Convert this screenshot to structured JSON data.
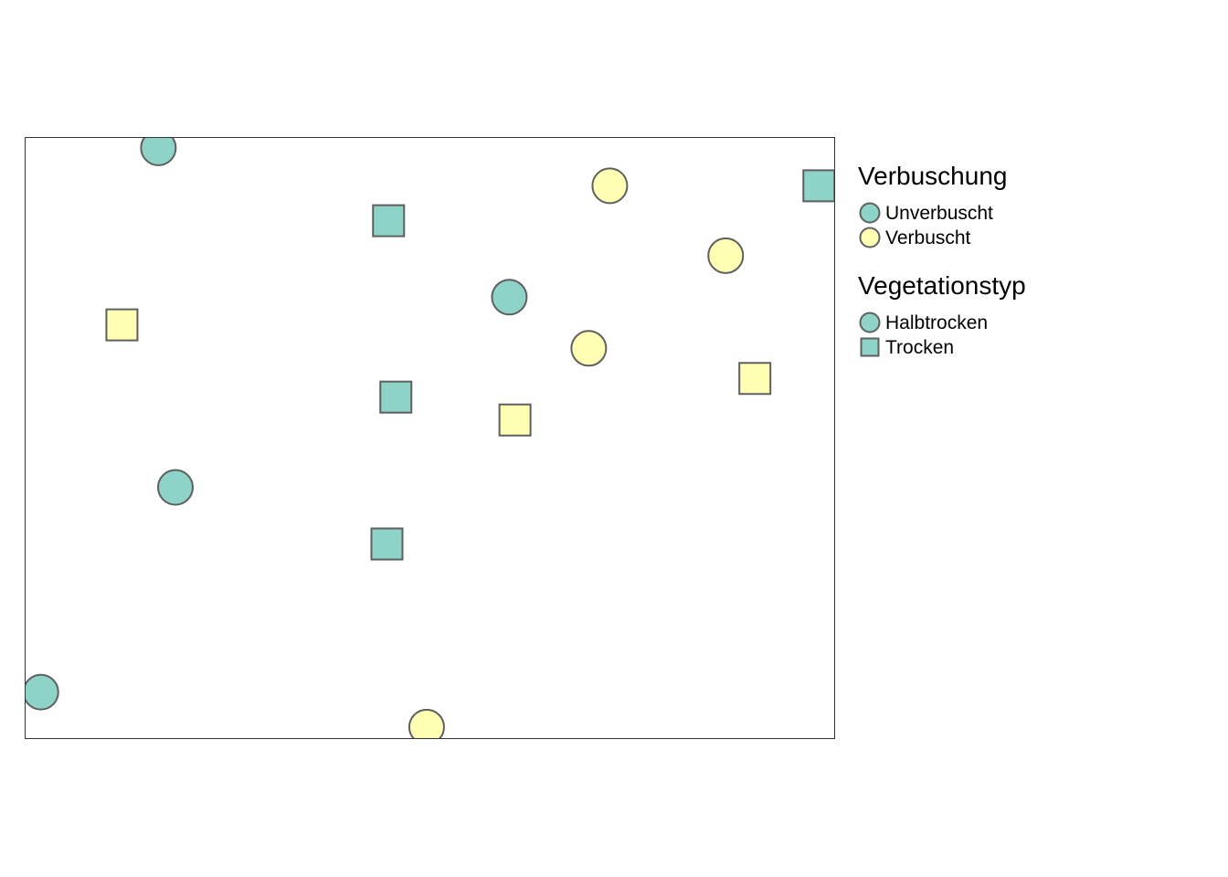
{
  "chart_data": {
    "type": "scatter",
    "title": "",
    "xlabel": "",
    "ylabel": "",
    "xlim": [
      0,
      1
    ],
    "ylim": [
      0,
      1
    ],
    "grid": false,
    "axes_visible": false,
    "legend_placement": "right",
    "colors": {
      "Unverbuscht": "#8dd3c7",
      "Verbuscht": "#ffffb3",
      "marker_edge": "#5f5f5f",
      "legend_neutral_fill": "#8dd3c7"
    },
    "legends": [
      {
        "title": "Verbuschung",
        "encoding": "color",
        "items": [
          {
            "label": "Unverbuscht",
            "color": "#8dd3c7",
            "marker": "circle"
          },
          {
            "label": "Verbuscht",
            "color": "#ffffb3",
            "marker": "circle"
          }
        ]
      },
      {
        "title": "Vegetationstyp",
        "encoding": "shape",
        "items": [
          {
            "label": "Halbtrocken",
            "color": "#8dd3c7",
            "marker": "circle"
          },
          {
            "label": "Trocken",
            "color": "#8dd3c7",
            "marker": "square"
          }
        ]
      }
    ],
    "points": [
      {
        "x": 0.165,
        "y": 0.982,
        "verbuschung": "Unverbuscht",
        "vegetationstyp": "Halbtrocken"
      },
      {
        "x": 0.722,
        "y": 0.919,
        "verbuschung": "Verbuscht",
        "vegetationstyp": "Halbtrocken"
      },
      {
        "x": 0.98,
        "y": 0.919,
        "verbuschung": "Unverbuscht",
        "vegetationstyp": "Trocken"
      },
      {
        "x": 0.449,
        "y": 0.861,
        "verbuschung": "Unverbuscht",
        "vegetationstyp": "Trocken"
      },
      {
        "x": 0.865,
        "y": 0.803,
        "verbuschung": "Verbuscht",
        "vegetationstyp": "Halbtrocken"
      },
      {
        "x": 0.598,
        "y": 0.734,
        "verbuschung": "Unverbuscht",
        "vegetationstyp": "Halbtrocken"
      },
      {
        "x": 0.12,
        "y": 0.688,
        "verbuschung": "Verbuscht",
        "vegetationstyp": "Trocken"
      },
      {
        "x": 0.696,
        "y": 0.649,
        "verbuschung": "Verbuscht",
        "vegetationstyp": "Halbtrocken"
      },
      {
        "x": 0.901,
        "y": 0.599,
        "verbuschung": "Verbuscht",
        "vegetationstyp": "Trocken"
      },
      {
        "x": 0.458,
        "y": 0.568,
        "verbuschung": "Unverbuscht",
        "vegetationstyp": "Trocken"
      },
      {
        "x": 0.605,
        "y": 0.53,
        "verbuschung": "Verbuscht",
        "vegetationstyp": "Trocken"
      },
      {
        "x": 0.186,
        "y": 0.418,
        "verbuschung": "Unverbuscht",
        "vegetationstyp": "Halbtrocken"
      },
      {
        "x": 0.447,
        "y": 0.324,
        "verbuschung": "Unverbuscht",
        "vegetationstyp": "Trocken"
      },
      {
        "x": 0.02,
        "y": 0.078,
        "verbuschung": "Unverbuscht",
        "vegetationstyp": "Halbtrocken"
      },
      {
        "x": 0.496,
        "y": 0.02,
        "verbuschung": "Verbuscht",
        "vegetationstyp": "Halbtrocken"
      }
    ]
  }
}
